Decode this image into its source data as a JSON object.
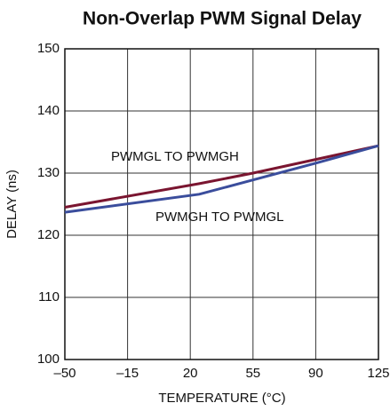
{
  "chart_data": {
    "type": "line",
    "title": "Non-Overlap PWM Signal Delay",
    "x_label": "TEMPERATURE (°C)",
    "y_label": "DELAY (ns)",
    "x": [
      -50,
      25,
      55,
      90,
      125
    ],
    "series": [
      {
        "name": "PWMGL TO PWMGH",
        "color": "#7a1530",
        "values": [
          124.5,
          128.3,
          130,
          132.2,
          134.4
        ]
      },
      {
        "name": "PWMGH TO PWMGL",
        "color": "#3a4d9c",
        "values": [
          123.7,
          126.6,
          128.9,
          131.6,
          134.4
        ]
      }
    ],
    "xlim": [
      -50,
      125
    ],
    "xticks": [
      {
        "value": -50,
        "label": "–50"
      },
      {
        "value": -15,
        "label": "–15"
      },
      20,
      55,
      90,
      125
    ],
    "ylim": [
      100,
      150
    ],
    "yticks": [
      100,
      110,
      120,
      130,
      140,
      150
    ],
    "grid": true
  }
}
